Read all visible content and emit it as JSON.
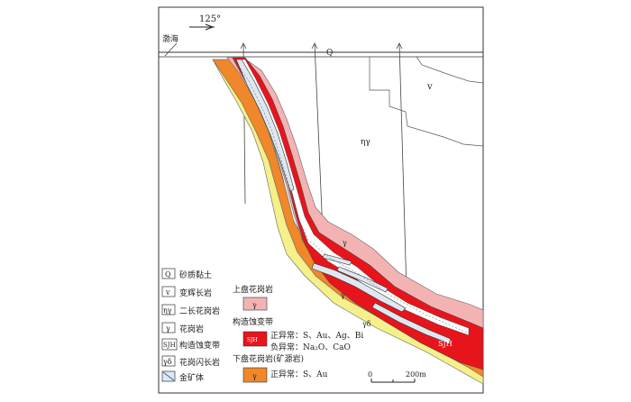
{
  "map": {
    "azimuth_label": "125°",
    "place_label": "渤海",
    "map_units": {
      "Q": "Q",
      "v": "v",
      "eta_gamma": "ηγ",
      "gamma_upper": "γ",
      "gamma_middle": "γ",
      "gamma_delta": "γδ",
      "sjh": "SJH"
    },
    "scale": {
      "zero": "0",
      "end": "200m"
    }
  },
  "legend": {
    "left": [
      {
        "symbol": "Q",
        "label": "砂质黏土"
      },
      {
        "symbol": "v",
        "label": "变辉长岩"
      },
      {
        "symbol": "ηγ",
        "label": "二长花岗岩"
      },
      {
        "symbol": "γ",
        "label": "花岗岩"
      },
      {
        "symbol": "SJH",
        "label": "构造蚀变带"
      },
      {
        "symbol": "γδ",
        "label": "花岗闪长岩"
      },
      {
        "symbol": "",
        "label": "金矿体"
      }
    ],
    "upper_plate": {
      "title": "上盘花岗岩",
      "symbol": "γ",
      "color": "#f4b3b3"
    },
    "alteration": {
      "title": "构造蚀变带",
      "symbol": "SJH",
      "color": "#e8141c",
      "positive": "正异常：S、Au、Ag、Bi",
      "negative": "负异常：Na₂O、CaO"
    },
    "lower_plate": {
      "title": "下盘花岗岩(矿源岩)",
      "symbol": "γ",
      "color": "#f0872a",
      "positive": "正异常：S、Au"
    }
  },
  "colors": {
    "upper_granite": "#f4b3b3",
    "alteration": "#e8141c",
    "lower_granite": "#f0872a",
    "granodiorite": "#f5f08a",
    "ore": "#dfe7ef"
  }
}
